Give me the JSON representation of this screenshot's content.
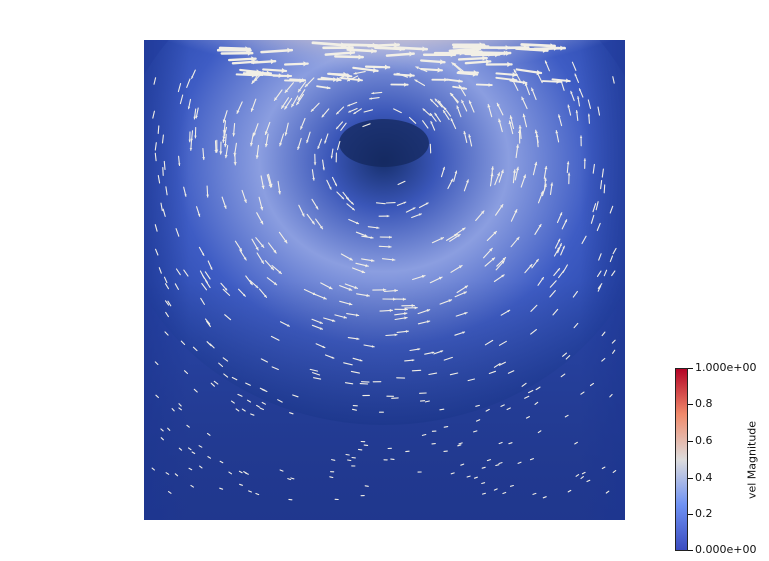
{
  "colorbar": {
    "title": "vel Magnitude",
    "min_label": "0.000e+00",
    "max_label": "1.000e+00",
    "tick_labels": [
      "0.2",
      "0.4",
      "0.6",
      "0.8"
    ],
    "range": [
      0,
      1
    ],
    "colormap": [
      "#3b4cc0",
      "#6f92f3",
      "#dddcdc",
      "#f08a6b",
      "#b40426"
    ]
  },
  "field": {
    "type": "lid-driven cavity velocity glyphs",
    "lid_velocity": 1.0,
    "vortex_center": [
      0.5,
      0.76
    ],
    "background_color": "#ffffff",
    "glyph_color": "#f2efe6"
  }
}
